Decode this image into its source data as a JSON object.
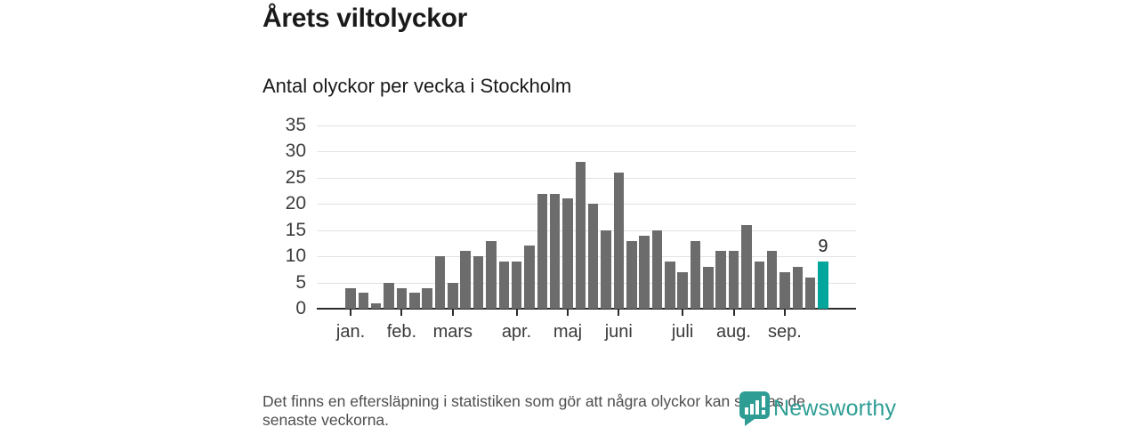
{
  "page": {
    "title": "Årets viltolyckor",
    "subtitle": "Antal olyckor per vecka i Stockholm",
    "footnote_lines": [
      "Det finns en eftersläpning i statistiken som gör att några olyckor kan saknas de",
      "senaste veckorna."
    ]
  },
  "branding": {
    "logo_text": "Newsworthy",
    "logo_icon": "newsworthy-badge-chart-icon",
    "logo_color": "#2E9E94"
  },
  "chart_data": {
    "type": "bar",
    "title": "Årets viltolyckor",
    "subtitle": "Antal olyckor per vecka i Stockholm",
    "xlabel": "",
    "ylabel": "",
    "n_bars": 38,
    "x_unit": "week",
    "values": [
      4,
      3,
      1,
      5,
      4,
      3,
      4,
      10,
      5,
      11,
      10,
      13,
      9,
      9,
      12,
      22,
      22,
      21,
      28,
      20,
      15,
      26,
      13,
      14,
      15,
      9,
      7,
      13,
      8,
      11,
      11,
      16,
      9,
      11,
      7,
      8,
      6,
      9
    ],
    "month_ticks": [
      {
        "label": "jan.",
        "bar_index": 0
      },
      {
        "label": "feb.",
        "bar_index": 4
      },
      {
        "label": "mars",
        "bar_index": 8
      },
      {
        "label": "apr.",
        "bar_index": 13
      },
      {
        "label": "maj",
        "bar_index": 17
      },
      {
        "label": "juni",
        "bar_index": 21
      },
      {
        "label": "juli",
        "bar_index": 26
      },
      {
        "label": "aug.",
        "bar_index": 30
      },
      {
        "label": "sep.",
        "bar_index": 34
      }
    ],
    "y_ticks": [
      0,
      5,
      10,
      15,
      20,
      25,
      30,
      35
    ],
    "ylim": [
      0,
      35
    ],
    "grid": true,
    "legend": "none",
    "bar_color": "#6C6C6C",
    "highlight_index": 37,
    "highlight_color": "#00A69B",
    "highlight_label": "9",
    "grid_color": "#E2E2E2",
    "axis_color": "#2B2B2B"
  }
}
